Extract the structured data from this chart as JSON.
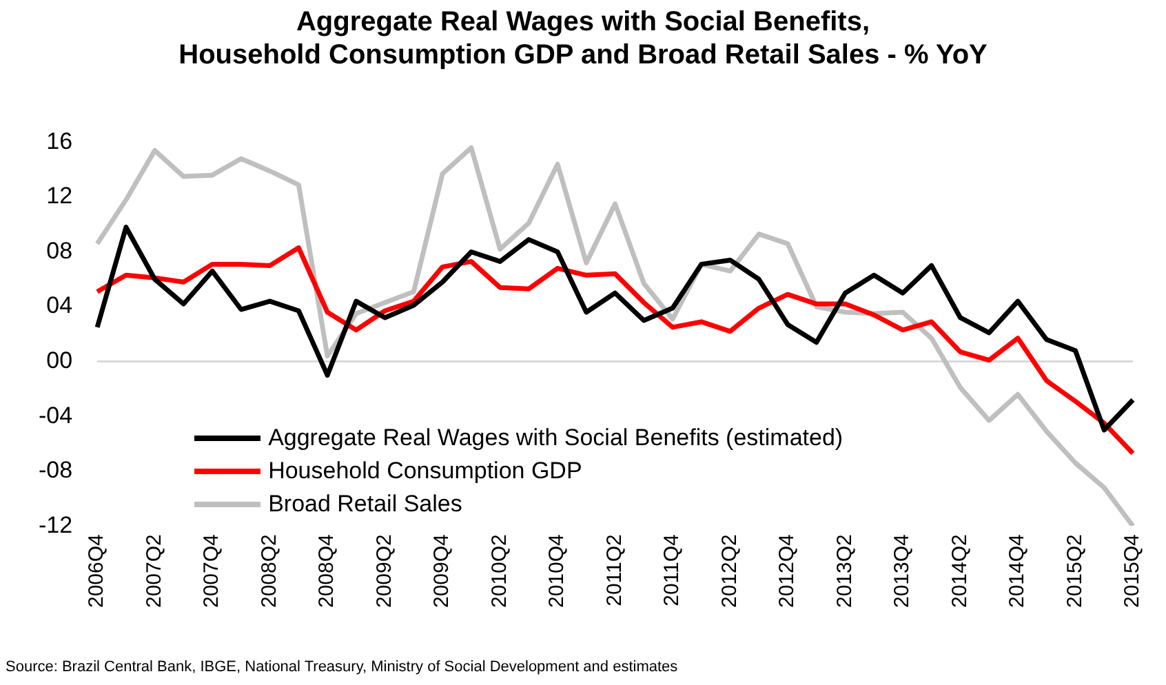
{
  "chart_data": {
    "type": "line",
    "title": "Aggregate Real Wages with Social Benefits,\nHousehold Consumption GDP and Broad Retail Sales - % YoY",
    "categories": [
      "2006Q4",
      null,
      "2007Q2",
      null,
      "2007Q4",
      null,
      "2008Q2",
      null,
      "2008Q4",
      null,
      "2009Q2",
      null,
      "2009Q4",
      null,
      "2010Q2",
      null,
      "2010Q4",
      null,
      "2011Q2",
      null,
      "2011Q4",
      null,
      "2012Q2",
      null,
      "2012Q4",
      null,
      "2013Q2",
      null,
      "2013Q4",
      null,
      "2014Q2",
      null,
      "2014Q4",
      null,
      "2015Q2",
      null,
      "2015Q4"
    ],
    "series": [
      {
        "name": "Aggregate Real Wages with Social Benefits (estimated)",
        "color": "#000000",
        "values": [
          2.5,
          9.8,
          6.0,
          4.2,
          6.6,
          3.8,
          4.4,
          3.7,
          -1.0,
          4.4,
          3.2,
          4.1,
          5.8,
          8.0,
          7.3,
          8.9,
          8.0,
          3.6,
          5.0,
          3.0,
          3.9,
          7.1,
          7.4,
          6.0,
          2.7,
          1.4,
          5.0,
          6.3,
          5.0,
          7.0,
          3.2,
          2.1,
          4.4,
          1.6,
          0.8,
          -5.0,
          -2.8
        ]
      },
      {
        "name": "Household Consumption GDP",
        "color": "#ff0000",
        "values": [
          5.1,
          6.3,
          6.1,
          5.8,
          7.1,
          7.1,
          7.0,
          8.3,
          3.6,
          2.3,
          3.7,
          4.4,
          6.9,
          7.3,
          5.4,
          5.3,
          6.8,
          6.3,
          6.4,
          4.3,
          2.5,
          2.9,
          2.2,
          3.9,
          4.9,
          4.2,
          4.2,
          3.4,
          2.3,
          2.9,
          0.7,
          0.1,
          1.7,
          -1.4,
          -2.9,
          -4.5,
          -6.7
        ]
      },
      {
        "name": "Broad Retail Sales",
        "color": "#bfbfbf",
        "values": [
          8.6,
          11.8,
          15.4,
          13.5,
          13.6,
          14.8,
          13.9,
          12.9,
          0.4,
          3.5,
          4.3,
          5.1,
          13.7,
          15.6,
          8.2,
          10.1,
          14.4,
          7.2,
          11.5,
          5.7,
          3.1,
          7.1,
          6.6,
          9.3,
          8.6,
          4.0,
          3.6,
          3.5,
          3.6,
          1.7,
          -1.9,
          -4.3,
          -2.4,
          -5.1,
          -7.4,
          -9.2,
          -12.0
        ]
      }
    ],
    "ylim": [
      -12,
      16
    ],
    "yticks": [
      {
        "value": 16,
        "label": "16"
      },
      {
        "value": 12,
        "label": "12"
      },
      {
        "value": 8,
        "label": "08"
      },
      {
        "value": 4,
        "label": "04"
      },
      {
        "value": 0,
        "label": "00"
      },
      {
        "value": -4,
        "label": "-04"
      },
      {
        "value": -8,
        "label": "-08"
      },
      {
        "value": -12,
        "label": "-12"
      }
    ],
    "grid": false,
    "ref_lines": [
      {
        "axis": "y",
        "value": 0,
        "color": "#d9d9d9"
      }
    ],
    "legend": "bottom left",
    "marker": "none",
    "line_style": "solid",
    "annotations": [
      "Source: Brazil Central Bank, IBGE,  National Treasury, Ministry of Social Development and estimates"
    ]
  }
}
